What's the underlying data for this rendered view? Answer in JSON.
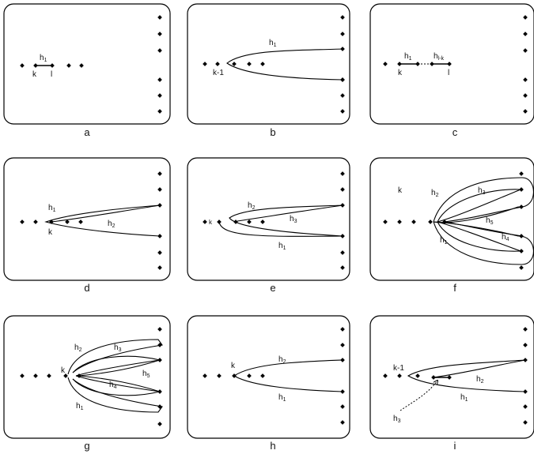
{
  "panels": [
    {
      "caption": "a",
      "labels": {
        "h": "h",
        "h_sub": "1",
        "k": "k",
        "l": "l"
      }
    },
    {
      "caption": "b",
      "labels": {
        "h": "h",
        "h_sub": "1",
        "k": "k-1"
      }
    },
    {
      "caption": "c",
      "labels": {
        "h1": "h",
        "h1_sub": "1",
        "h2": "h",
        "h2_sub": "l-k",
        "k": "k",
        "l": "l"
      }
    },
    {
      "caption": "d",
      "labels": {
        "h1": "h",
        "h1_sub": "1",
        "h2": "h",
        "h2_sub": "2",
        "k": "k"
      }
    },
    {
      "caption": "e",
      "labels": {
        "h1": "h",
        "h1_sub": "1",
        "h2": "h",
        "h2_sub": "2",
        "h3": "h",
        "h3_sub": "3",
        "k": "k"
      }
    },
    {
      "caption": "f",
      "labels": {
        "h1": "h",
        "h1_sub": "1",
        "h2": "h",
        "h2_sub": "2",
        "h3": "h",
        "h3_sub": "3",
        "h4": "h",
        "h4_sub": "4",
        "h5": "h",
        "h5_sub": "5",
        "k": "k"
      }
    },
    {
      "caption": "g",
      "labels": {
        "h1": "h",
        "h1_sub": "1",
        "h2": "h",
        "h2_sub": "2",
        "h3": "h",
        "h3_sub": "3",
        "h4": "h",
        "h4_sub": "4",
        "h5": "h",
        "h5_sub": "5",
        "k": "k"
      }
    },
    {
      "caption": "h",
      "labels": {
        "h1": "h",
        "h1_sub": "1",
        "h2": "h",
        "h2_sub": "2",
        "k": "k"
      }
    },
    {
      "caption": "i",
      "labels": {
        "h1": "h",
        "h1_sub": "1",
        "h2": "h",
        "h2_sub": "2",
        "h3": "h",
        "h3_sub": "3",
        "k": "k-1"
      }
    }
  ]
}
